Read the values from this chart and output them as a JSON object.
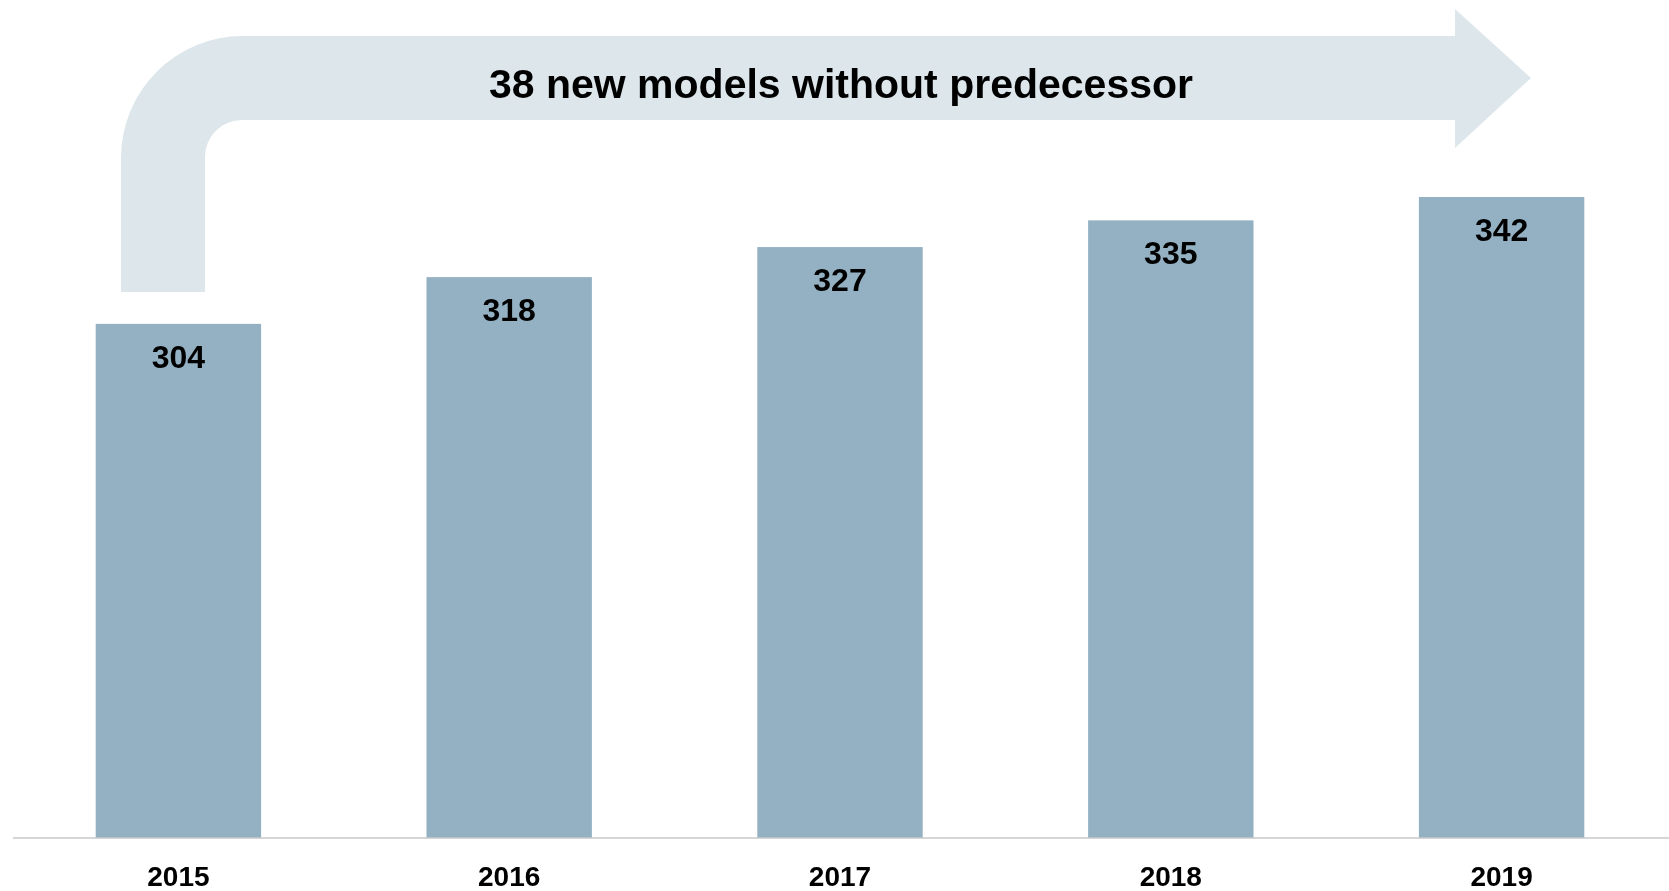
{
  "chart_data": {
    "type": "bar",
    "categories": [
      "2015",
      "2016",
      "2017",
      "2018",
      "2019"
    ],
    "values": [
      304,
      318,
      327,
      335,
      342
    ],
    "color": "#93b1c2",
    "ylim": [
      150,
      342
    ],
    "data_labels": true,
    "annotations": [
      "38 new models without predecessor"
    ]
  }
}
